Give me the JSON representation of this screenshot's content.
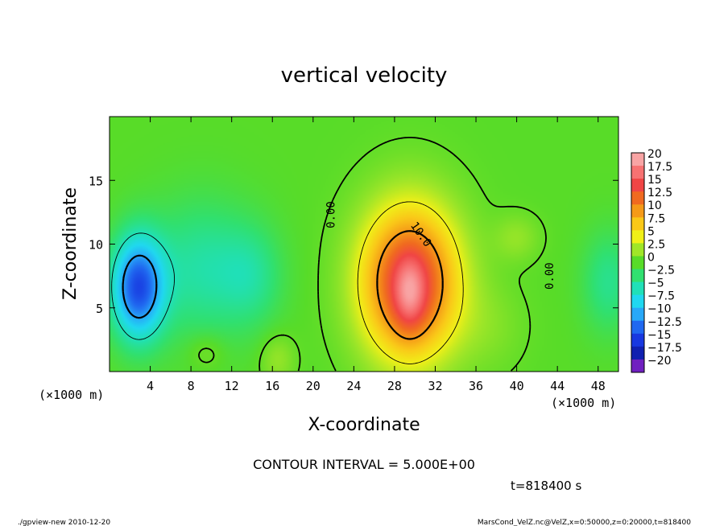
{
  "chart_data": {
    "type": "heatmap",
    "title": "vertical velocity",
    "xlabel": "X-coordinate",
    "ylabel": "Z-coordinate",
    "x_unit_label": "(×1000 m)",
    "x_unit_label_right": "(×1000 m)",
    "xlim": [
      0,
      50
    ],
    "ylim": [
      0,
      20
    ],
    "x_ticks": [
      4,
      8,
      12,
      16,
      20,
      24,
      28,
      32,
      36,
      40,
      44,
      48
    ],
    "y_ticks": [
      5,
      10,
      15
    ],
    "contour_interval_text": "CONTOUR INTERVAL = 5.000E+00",
    "time_text": "t=818400 s",
    "footer_left": "./gpview-new   2010-12-20",
    "footer_right": "MarsCond_VelZ.nc@VelZ,x=0:50000,z=0:20000,t=818400",
    "contour_labels": [
      {
        "text": "0.00",
        "x": 22.1,
        "z": 12.3,
        "angle": -90
      },
      {
        "text": "10.0",
        "x": 30.3,
        "z": 10.6,
        "angle": 55
      },
      {
        "text": "0.00",
        "x": 43.6,
        "z": 7.5,
        "angle": -90
      }
    ],
    "colorbar": {
      "labels": [
        "20",
        "17.5",
        "15",
        "12.5",
        "10",
        "7.5",
        "5",
        "2.5",
        "0",
        "−2.5",
        "−5",
        "−7.5",
        "−10",
        "−12.5",
        "−15",
        "−17.5",
        "−20"
      ],
      "colors": [
        "#f8a4a4",
        "#f77272",
        "#f04545",
        "#f06a20",
        "#f59a18",
        "#fac818",
        "#f0f018",
        "#a0e628",
        "#58dc28",
        "#30e070",
        "#20e0b8",
        "#20d8f0",
        "#28a8f8",
        "#2068f0",
        "#1838e0",
        "#1020b0",
        "#7020c0"
      ]
    },
    "blobs": [
      {
        "x": 29.5,
        "z": 7.0,
        "sx": 3.4,
        "sz": 4.2,
        "amp": 15.5
      },
      {
        "x": 29.5,
        "z": 6.0,
        "sx": 1.1,
        "sz": 2.0,
        "amp": 5.0
      },
      {
        "x": 2.8,
        "z": 6.6,
        "sx": 1.8,
        "sz": 2.8,
        "amp": -13.5
      },
      {
        "x": 9.0,
        "z": 8.0,
        "sx": 3.6,
        "sz": 3.8,
        "amp": -4.2
      },
      {
        "x": 14.0,
        "z": 7.5,
        "sx": 2.2,
        "sz": 2.8,
        "amp": -3.0
      },
      {
        "x": 40.0,
        "z": 10.5,
        "sx": 1.6,
        "sz": 1.3,
        "amp": 2.0
      },
      {
        "x": 49.0,
        "z": 7.0,
        "sx": 1.8,
        "sz": 2.8,
        "amp": -3.5
      },
      {
        "x": 16.5,
        "z": 1.0,
        "sx": 1.2,
        "sz": 1.4,
        "amp": 2.2
      },
      {
        "x": 9.5,
        "z": 1.6,
        "sx": 1.3,
        "sz": 1.0,
        "amp": 1.6
      },
      {
        "x": 37.5,
        "z": 3.5,
        "sx": 2.5,
        "sz": 2.5,
        "amp": 1.2
      }
    ]
  }
}
